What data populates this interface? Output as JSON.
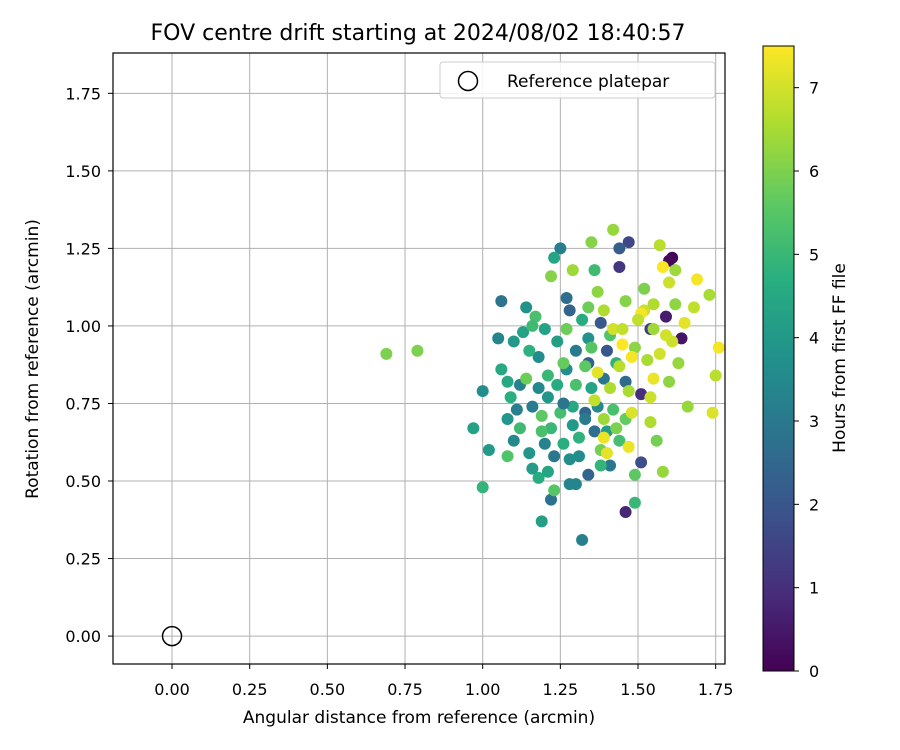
{
  "chart_data": {
    "type": "scatter",
    "title": "FOV centre drift starting at 2024/08/02 18:40:57",
    "xlabel": "Angular distance from reference (arcmin)",
    "ylabel": "Rotation from reference (arcmin)",
    "xlim": [
      -0.19,
      1.78
    ],
    "ylim": [
      -0.09,
      1.88
    ],
    "x_ticks": [
      0.0,
      0.25,
      0.5,
      0.75,
      1.0,
      1.25,
      1.5,
      1.75
    ],
    "y_ticks": [
      0.0,
      0.25,
      0.5,
      0.75,
      1.0,
      1.25,
      1.5,
      1.75
    ],
    "x_tick_labels": [
      "0.00",
      "0.25",
      "0.50",
      "0.75",
      "1.00",
      "1.25",
      "1.50",
      "1.75"
    ],
    "y_tick_labels": [
      "0.00",
      "0.25",
      "0.50",
      "0.75",
      "1.00",
      "1.25",
      "1.50",
      "1.75"
    ],
    "grid": true,
    "legend": {
      "position": "top-right",
      "label": "Reference platepar"
    },
    "reference_point": {
      "x": 0.0,
      "y": 0.0
    },
    "colorbar": {
      "label": "Hours from first FF file",
      "min": 0,
      "max": 7.5,
      "ticks": [
        0,
        1,
        2,
        3,
        4,
        5,
        6,
        7
      ],
      "tick_labels": [
        "0",
        "1",
        "2",
        "3",
        "4",
        "5",
        "6",
        "7"
      ],
      "colormap": "viridis"
    },
    "points": [
      [
        1.61,
        1.22,
        0.1
      ],
      [
        1.6,
        1.21,
        0.2
      ],
      [
        1.64,
        0.96,
        0.4
      ],
      [
        1.59,
        1.03,
        0.6
      ],
      [
        1.46,
        0.4,
        0.8
      ],
      [
        1.51,
        0.78,
        1.0
      ],
      [
        1.44,
        1.19,
        1.2
      ],
      [
        1.54,
        0.99,
        1.4
      ],
      [
        1.47,
        1.27,
        1.6
      ],
      [
        1.51,
        0.56,
        1.8
      ],
      [
        1.4,
        0.92,
        2.0
      ],
      [
        1.38,
        1.01,
        2.1
      ],
      [
        1.44,
        1.25,
        2.2
      ],
      [
        1.34,
        0.88,
        2.3
      ],
      [
        1.28,
        1.05,
        2.4
      ],
      [
        1.33,
        0.72,
        2.5
      ],
      [
        1.46,
        0.82,
        2.6
      ],
      [
        1.36,
        0.66,
        2.7
      ],
      [
        1.22,
        0.44,
        2.8
      ],
      [
        1.39,
        0.83,
        2.9
      ],
      [
        1.06,
        1.08,
        2.9
      ],
      [
        1.23,
        0.58,
        3.0
      ],
      [
        1.41,
        0.55,
        3.0
      ],
      [
        1.3,
        0.92,
        3.1
      ],
      [
        1.16,
        0.74,
        3.1
      ],
      [
        1.32,
        0.31,
        3.2
      ],
      [
        1.25,
        1.25,
        3.2
      ],
      [
        1.12,
        0.81,
        3.3
      ],
      [
        1.2,
        0.62,
        3.3
      ],
      [
        1.05,
        0.96,
        3.4
      ],
      [
        1.28,
        0.49,
        3.4
      ],
      [
        1.37,
        0.74,
        3.5
      ],
      [
        1.1,
        0.63,
        3.5
      ],
      [
        1.18,
        0.9,
        3.6
      ],
      [
        1.31,
        0.58,
        3.6
      ],
      [
        1.0,
        0.79,
        3.7
      ],
      [
        1.27,
        0.86,
        3.7
      ],
      [
        1.14,
        1.06,
        3.8
      ],
      [
        1.34,
        0.96,
        3.8
      ],
      [
        1.08,
        0.7,
        3.9
      ],
      [
        1.21,
        0.77,
        3.9
      ],
      [
        1.02,
        0.6,
        4.0
      ],
      [
        1.29,
        0.68,
        4.0
      ],
      [
        1.16,
        0.54,
        4.1
      ],
      [
        1.4,
        0.66,
        4.1
      ],
      [
        1.19,
        0.37,
        4.2
      ],
      [
        1.24,
        0.95,
        4.2
      ],
      [
        0.97,
        0.67,
        4.3
      ],
      [
        1.13,
        0.98,
        4.3
      ],
      [
        1.35,
        0.8,
        4.4
      ],
      [
        1.23,
        1.22,
        4.4
      ],
      [
        1.06,
        0.86,
        4.5
      ],
      [
        1.29,
        0.74,
        4.5
      ],
      [
        1.18,
        0.51,
        4.6
      ],
      [
        1.32,
        1.02,
        4.6
      ],
      [
        1.09,
        0.77,
        4.7
      ],
      [
        1.26,
        0.62,
        4.7
      ],
      [
        1.43,
        0.88,
        4.8
      ],
      [
        1.15,
        0.92,
        4.8
      ],
      [
        1.38,
        0.55,
        4.9
      ],
      [
        1.0,
        0.48,
        4.9
      ],
      [
        1.21,
        0.84,
        5.0
      ],
      [
        1.49,
        0.43,
        5.0
      ],
      [
        1.12,
        0.67,
        5.1
      ],
      [
        1.36,
        1.18,
        5.1
      ],
      [
        1.25,
        0.72,
        5.2
      ],
      [
        1.44,
        0.63,
        5.2
      ],
      [
        1.17,
        1.03,
        5.3
      ],
      [
        1.3,
        0.81,
        5.3
      ],
      [
        1.08,
        0.58,
        5.4
      ],
      [
        1.41,
        0.97,
        5.4
      ],
      [
        1.23,
        0.47,
        5.5
      ],
      [
        1.33,
        0.87,
        5.6
      ],
      [
        1.19,
        0.71,
        5.6
      ],
      [
        1.46,
        0.7,
        5.7
      ],
      [
        1.27,
        0.99,
        5.8
      ],
      [
        1.14,
        0.83,
        5.8
      ],
      [
        1.38,
        0.6,
        5.9
      ],
      [
        0.69,
        0.91,
        6.0
      ],
      [
        0.79,
        0.92,
        6.0
      ],
      [
        1.52,
        1.12,
        6.0
      ],
      [
        1.35,
        1.27,
        6.1
      ],
      [
        1.22,
        1.16,
        6.1
      ],
      [
        1.6,
        0.82,
        6.2
      ],
      [
        1.49,
        0.93,
        6.2
      ],
      [
        1.58,
        0.53,
        6.3
      ],
      [
        1.42,
        1.31,
        6.3
      ],
      [
        1.66,
        0.74,
        6.3
      ],
      [
        1.55,
        0.99,
        6.4
      ],
      [
        1.29,
        1.18,
        6.4
      ],
      [
        1.62,
        1.18,
        6.4
      ],
      [
        1.47,
        0.79,
        6.5
      ],
      [
        1.73,
        1.1,
        6.5
      ],
      [
        1.39,
        1.05,
        6.6
      ],
      [
        1.54,
        0.69,
        6.6
      ],
      [
        1.75,
        0.84,
        6.7
      ],
      [
        1.44,
        0.87,
        6.7
      ],
      [
        1.68,
        1.06,
        6.8
      ],
      [
        1.36,
        0.76,
        6.8
      ],
      [
        1.52,
        1.05,
        6.9
      ],
      [
        1.61,
        0.95,
        6.9
      ],
      [
        1.42,
        0.99,
        7.0
      ],
      [
        1.57,
        0.91,
        7.0
      ],
      [
        1.74,
        0.72,
        7.1
      ],
      [
        1.48,
        0.72,
        7.1
      ],
      [
        1.4,
        0.59,
        7.2
      ],
      [
        1.65,
        1.01,
        7.2
      ],
      [
        1.55,
        0.83,
        7.3
      ],
      [
        1.47,
        0.61,
        7.3
      ],
      [
        1.69,
        1.15,
        7.4
      ],
      [
        1.51,
        1.04,
        7.4
      ],
      [
        1.76,
        0.93,
        7.4
      ],
      [
        1.58,
        1.19,
        7.5
      ],
      [
        1.45,
        0.94,
        7.5
      ],
      [
        1.6,
        1.14,
        6.9
      ],
      [
        1.37,
        1.11,
        6.2
      ],
      [
        1.56,
        0.63,
        5.9
      ],
      [
        1.26,
        0.88,
        5.7
      ],
      [
        1.31,
        0.64,
        4.8
      ],
      [
        1.11,
        0.73,
        3.2
      ],
      [
        1.27,
        1.09,
        2.7
      ],
      [
        1.34,
        0.52,
        2.4
      ],
      [
        1.5,
        1.02,
        6.8
      ],
      [
        1.42,
        0.73,
        5.3
      ],
      [
        1.2,
        0.99,
        4.3
      ],
      [
        1.15,
        0.59,
        3.9
      ],
      [
        1.53,
        0.89,
        6.5
      ],
      [
        1.39,
        0.64,
        7.3
      ],
      [
        1.24,
        0.81,
        4.6
      ],
      [
        1.46,
        1.08,
        6.1
      ],
      [
        1.18,
        0.8,
        3.5
      ],
      [
        1.35,
        0.93,
        5.5
      ],
      [
        1.63,
        0.88,
        6.3
      ],
      [
        1.3,
        0.49,
        3.4
      ],
      [
        1.43,
        0.67,
        6.0
      ],
      [
        1.22,
        0.67,
        5.0
      ],
      [
        1.57,
        1.26,
        6.7
      ],
      [
        1.1,
        0.95,
        4.0
      ],
      [
        1.49,
        0.52,
        5.6
      ],
      [
        1.37,
        0.85,
        7.2
      ],
      [
        1.28,
        0.57,
        3.7
      ],
      [
        1.59,
        0.97,
        7.0
      ],
      [
        1.16,
        1.0,
        5.1
      ],
      [
        1.41,
        0.8,
        6.6
      ],
      [
        1.33,
        0.7,
        3.1
      ],
      [
        1.54,
        0.77,
        6.9
      ],
      [
        1.21,
        0.53,
        4.4
      ],
      [
        1.45,
        0.99,
        6.8
      ],
      [
        1.08,
        0.82,
        4.5
      ],
      [
        1.62,
        1.07,
        6.2
      ],
      [
        1.34,
        1.06,
        5.8
      ],
      [
        1.26,
        0.75,
        2.9
      ],
      [
        1.48,
        0.9,
        7.4
      ],
      [
        1.19,
        0.66,
        5.3
      ],
      [
        1.39,
        0.7,
        6.4
      ],
      [
        1.55,
        1.07,
        6.6
      ]
    ]
  }
}
